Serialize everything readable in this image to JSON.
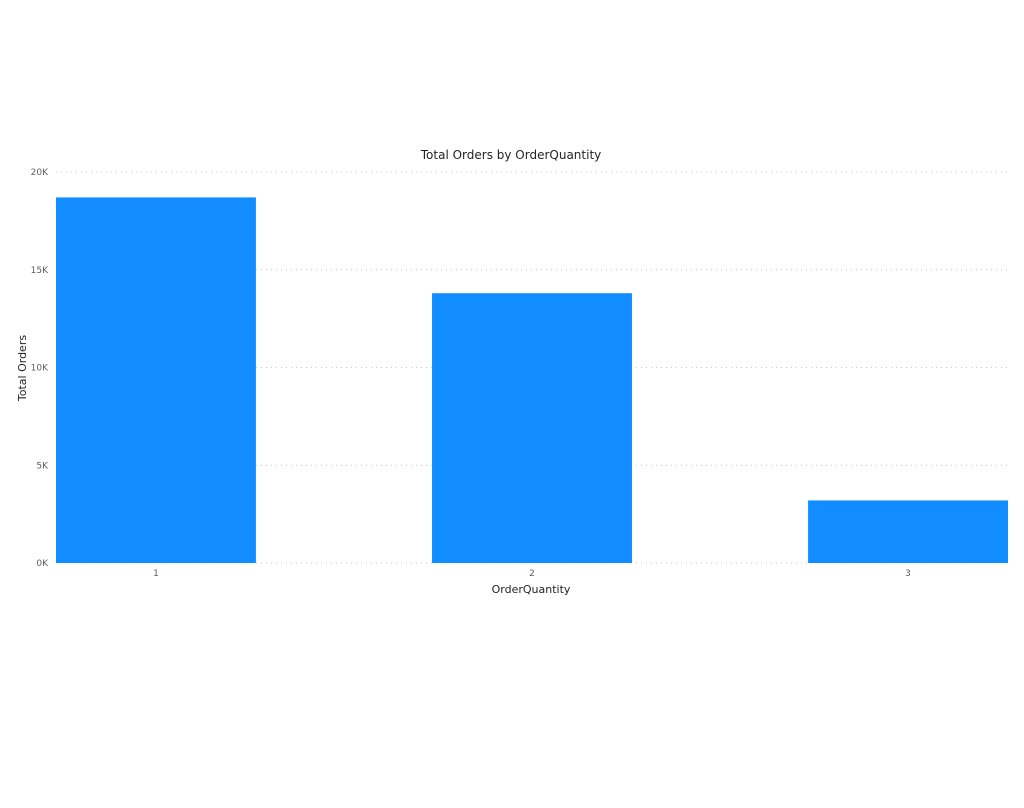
{
  "chart_data": {
    "type": "bar",
    "title": "Total Orders by OrderQuantity",
    "xlabel": "OrderQuantity",
    "ylabel": "Total Orders",
    "categories": [
      "1",
      "2",
      "3"
    ],
    "series": [
      {
        "values": [
          18700,
          13800,
          3200
        ],
        "color": "#118dff"
      }
    ],
    "ylim": [
      0,
      20000
    ],
    "yticks": [
      {
        "value": 0,
        "label": "0K"
      },
      {
        "value": 5000,
        "label": "5K"
      },
      {
        "value": 10000,
        "label": "10K"
      },
      {
        "value": 15000,
        "label": "15K"
      },
      {
        "value": 20000,
        "label": "20K"
      }
    ],
    "grid": true,
    "legend": "none"
  }
}
